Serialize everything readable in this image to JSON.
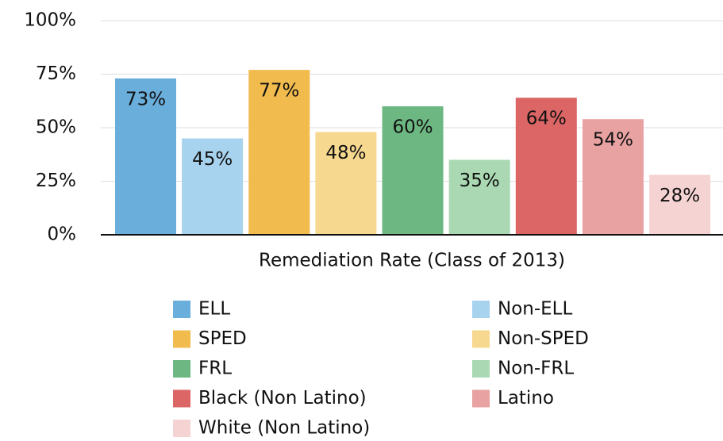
{
  "chart_data": {
    "type": "bar",
    "x_label": "Remediation Rate (Class of 2013)",
    "categories": [
      null
    ],
    "series": [
      {
        "name": "ELL",
        "color": "#6aaedb",
        "values": [
          73
        ],
        "value_labels": [
          "73%"
        ]
      },
      {
        "name": "Non-ELL",
        "color": "#a8d3ee",
        "values": [
          45
        ],
        "value_labels": [
          "45%"
        ]
      },
      {
        "name": "SPED",
        "color": "#f2bb4e",
        "values": [
          77
        ],
        "value_labels": [
          "77%"
        ]
      },
      {
        "name": "Non-SPED",
        "color": "#f7d88f",
        "values": [
          48
        ],
        "value_labels": [
          "48%"
        ]
      },
      {
        "name": "FRL",
        "color": "#6db882",
        "values": [
          60
        ],
        "value_labels": [
          "60%"
        ]
      },
      {
        "name": "Non-FRL",
        "color": "#a9d8b3",
        "values": [
          35
        ],
        "value_labels": [
          "35%"
        ]
      },
      {
        "name": "Black (Non Latino)",
        "color": "#dc6565",
        "values": [
          64
        ],
        "value_labels": [
          "64%"
        ]
      },
      {
        "name": "Latino",
        "color": "#e9a2a2",
        "values": [
          54
        ],
        "value_labels": [
          "54%"
        ]
      },
      {
        "name": "White (Non Latino)",
        "color": "#f5d3d3",
        "values": [
          28
        ],
        "value_labels": [
          "28%"
        ]
      }
    ],
    "ylim": [
      0,
      100
    ],
    "yticks": [
      {
        "value": 0,
        "label": "0%"
      },
      {
        "value": 25,
        "label": "25%"
      },
      {
        "value": 50,
        "label": "50%"
      },
      {
        "value": 75,
        "label": "75%"
      },
      {
        "value": 100,
        "label": "100%"
      }
    ],
    "grid": true,
    "legend": "bottom"
  }
}
